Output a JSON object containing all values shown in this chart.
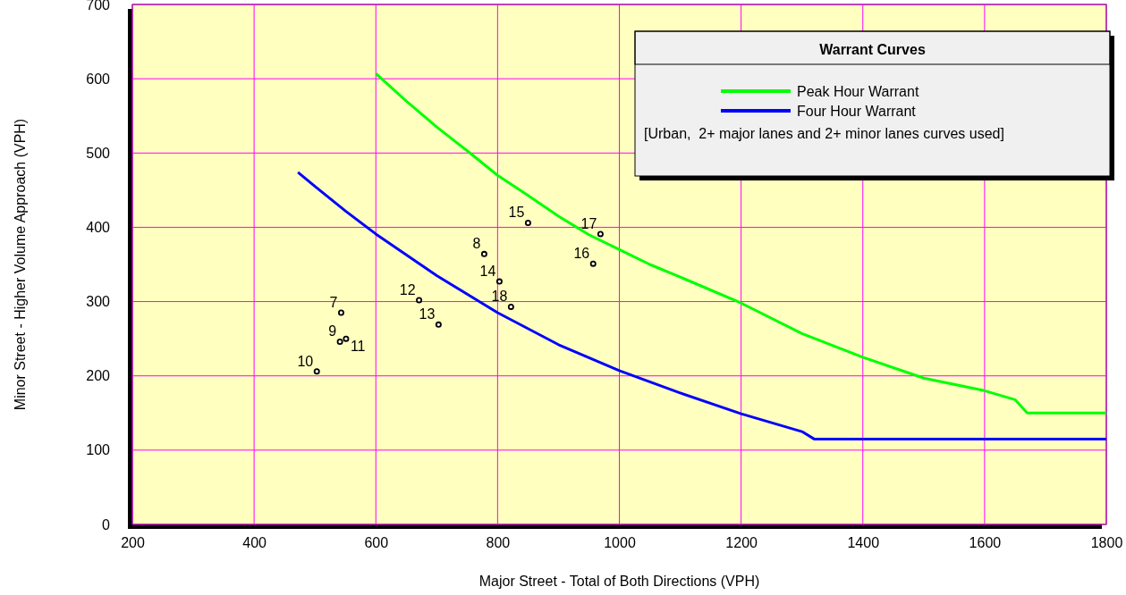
{
  "chart_data": {
    "type": "line",
    "xlabel": "Major Street - Total of Both Directions (VPH)",
    "ylabel": "Minor Street - Higher Volume Approach (VPH)",
    "legend_title": "Warrant Curves",
    "legend": "top right",
    "grid": true,
    "xlim": [
      200,
      1800
    ],
    "xticks": [
      200,
      400,
      600,
      800,
      1000,
      1200,
      1400,
      1600,
      1800
    ],
    "ylim": [
      0,
      700
    ],
    "yticks": [
      0,
      100,
      200,
      300,
      400,
      500,
      600,
      700
    ],
    "series": [
      {
        "name": "Peak Hour Warrant",
        "color": "#00ff00",
        "marker": "none",
        "x": [
          600,
          650,
          700,
          750,
          800,
          850,
          900,
          950,
          1000,
          1050,
          1100,
          1200,
          1300,
          1400,
          1500,
          1600,
          1650,
          1670,
          1800
        ],
        "values": [
          607,
          570,
          535,
          503,
          470,
          443,
          415,
          390,
          370,
          350,
          333,
          298,
          257,
          225,
          197,
          180,
          168,
          150,
          150
        ]
      },
      {
        "name": "Four Hour Warrant",
        "color": "#0000ff",
        "marker": "none",
        "x": [
          472,
          500,
          550,
          600,
          700,
          800,
          900,
          1000,
          1100,
          1200,
          1300,
          1320,
          1800
        ],
        "values": [
          474,
          455,
          422,
          391,
          335,
          285,
          242,
          207,
          177,
          149,
          125,
          115,
          115
        ]
      },
      {
        "type": "scatter",
        "color": "#000000",
        "marker": "circle",
        "x": [
          543,
          778,
          541,
          503,
          551,
          671,
          703,
          803,
          850,
          957,
          969,
          822
        ],
        "values": [
          285,
          364,
          246,
          206,
          250,
          302,
          269,
          327,
          406,
          351,
          391,
          293
        ]
      }
    ],
    "annotations": [
      {
        "text": "7",
        "x": 543,
        "y": 285
      },
      {
        "text": "8",
        "x": 778,
        "y": 364
      },
      {
        "text": "9",
        "x": 541,
        "y": 246
      },
      {
        "text": "10",
        "x": 503,
        "y": 206
      },
      {
        "text": "11",
        "x": 551,
        "y": 250
      },
      {
        "text": "12",
        "x": 671,
        "y": 302
      },
      {
        "text": "13",
        "x": 703,
        "y": 269
      },
      {
        "text": "14",
        "x": 803,
        "y": 327
      },
      {
        "text": "15",
        "x": 850,
        "y": 406
      },
      {
        "text": "16",
        "x": 957,
        "y": 351
      },
      {
        "text": "17",
        "x": 969,
        "y": 391
      },
      {
        "text": "18",
        "x": 822,
        "y": 293
      },
      "[Urban,  2+ major lanes and 2+ minor lanes curves used]"
    ]
  }
}
